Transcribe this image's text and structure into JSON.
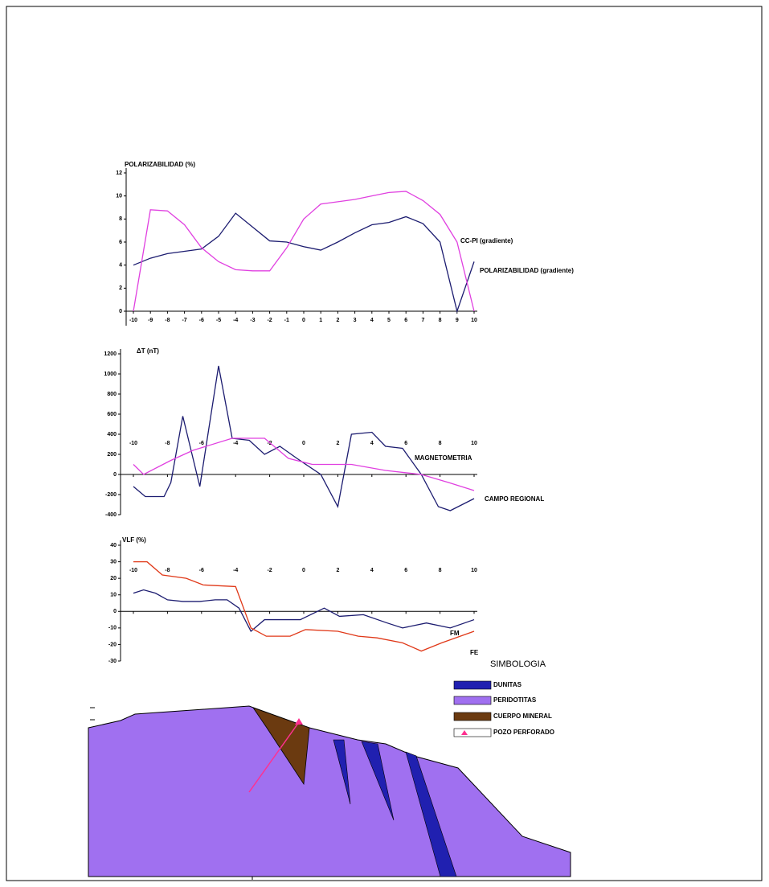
{
  "chart_data": [
    {
      "type": "line",
      "title": "POLARIZABILIDAD (%)",
      "x": [
        -10,
        -9,
        -8,
        -7,
        -6,
        -5,
        -4,
        -3,
        -2,
        -1,
        0,
        1,
        2,
        3,
        4,
        5,
        6,
        7,
        8,
        9,
        10
      ],
      "xlim": [
        -10,
        10
      ],
      "xticks": [
        -10,
        -9,
        -8,
        -7,
        -6,
        -5,
        -4,
        -3,
        -2,
        -1,
        0,
        1,
        2,
        3,
        4,
        5,
        6,
        7,
        8,
        9,
        10
      ],
      "ylim": [
        0,
        12
      ],
      "yticks": [
        0,
        2,
        4,
        6,
        8,
        10,
        12
      ],
      "series": [
        {
          "name": "POLARIZABILIDAD (gradiente)",
          "color": "#1c1c70",
          "values": [
            4,
            4.6,
            5,
            5.2,
            5.4,
            6.5,
            8.5,
            7.3,
            6.1,
            6,
            5.6,
            5.3,
            6,
            6.8,
            7.5,
            7.7,
            8.2,
            7.6,
            6,
            0,
            4.3
          ]
        },
        {
          "name": "CC-PI (gradiente)",
          "color": "#e040e0",
          "values": [
            0,
            8.8,
            8.7,
            7.5,
            5.5,
            4.3,
            3.6,
            3.5,
            3.5,
            5.5,
            8,
            9.3,
            9.5,
            9.7,
            10,
            10.3,
            10.4,
            9.6,
            8.4,
            6,
            0
          ]
        }
      ]
    },
    {
      "type": "line",
      "title": "ΔT (nT)",
      "xlim": [
        -10,
        10
      ],
      "xticks": [
        -10,
        -8,
        -6,
        -4,
        -2,
        0,
        2,
        4,
        6,
        8,
        10
      ],
      "ylim": [
        -400,
        1200
      ],
      "yticks": [
        -400,
        -200,
        0,
        200,
        400,
        600,
        800,
        1000,
        1200
      ],
      "series": [
        {
          "name": "MAGNETOMETRIA",
          "color": "#1c1c70",
          "x": [
            -10,
            -9.3,
            -8.2,
            -7.8,
            -7.1,
            -6.1,
            -5,
            -4.2,
            -3.2,
            -2.3,
            -1.4,
            -0.4,
            1,
            2,
            2.8,
            4,
            4.8,
            5.8,
            6.9,
            7.9,
            8.6,
            10
          ],
          "values": [
            -120,
            -220,
            -220,
            -80,
            580,
            -120,
            1080,
            360,
            340,
            200,
            280,
            160,
            0,
            -320,
            400,
            420,
            280,
            260,
            0,
            -320,
            -360,
            -240
          ]
        },
        {
          "name": "CAMPO REGIONAL",
          "color": "#e040e0",
          "x": [
            -10,
            -9.4,
            -7.8,
            -6.5,
            -4.2,
            -2.3,
            -0.9,
            0.5,
            2.8,
            4.8,
            6.9,
            8.5,
            10
          ],
          "values": [
            100,
            0,
            140,
            240,
            360,
            360,
            160,
            100,
            100,
            40,
            0,
            -80,
            -160
          ]
        }
      ]
    },
    {
      "type": "line",
      "title": "VLF (%)",
      "xlim": [
        -10,
        10
      ],
      "xticks": [
        -10,
        -8,
        -6,
        -4,
        -2,
        0,
        2,
        4,
        6,
        8,
        10
      ],
      "ylim": [
        -30,
        40
      ],
      "yticks": [
        -30,
        -20,
        -10,
        0,
        10,
        20,
        30,
        40
      ],
      "series": [
        {
          "name": "FM",
          "color": "#1c1c70",
          "x": [
            -10,
            -9.4,
            -8.7,
            -8,
            -7.1,
            -6.1,
            -5.2,
            -4.5,
            -3.8,
            -3.1,
            -2.3,
            -1.4,
            -0.2,
            1.2,
            2.1,
            3.5,
            4.9,
            5.8,
            7.2,
            8.6,
            10
          ],
          "values": [
            11,
            13,
            11,
            7,
            6,
            6,
            7,
            7,
            2,
            -12,
            -5,
            -5,
            -5,
            2,
            -3,
            -2,
            -7,
            -10,
            -7,
            -10,
            -5
          ]
        },
        {
          "name": "FE",
          "color": "#e03818",
          "x": [
            -10,
            -9.2,
            -8.3,
            -6.9,
            -5.9,
            -4,
            -3.1,
            -2.2,
            -0.8,
            0.1,
            2,
            3.2,
            4.3,
            5.8,
            6.9,
            8.1,
            10
          ],
          "values": [
            30,
            30,
            22,
            20,
            16,
            15,
            -10,
            -15,
            -15,
            -11,
            -12,
            -15,
            -16,
            -19,
            -24,
            -19,
            -12
          ]
        }
      ]
    }
  ],
  "section": {
    "title": "SIMBOLOGIA",
    "items": [
      "DUNITAS",
      "PERIDOTITAS",
      "CUERPO MINERAL",
      "POZO PERFORADO"
    ]
  }
}
